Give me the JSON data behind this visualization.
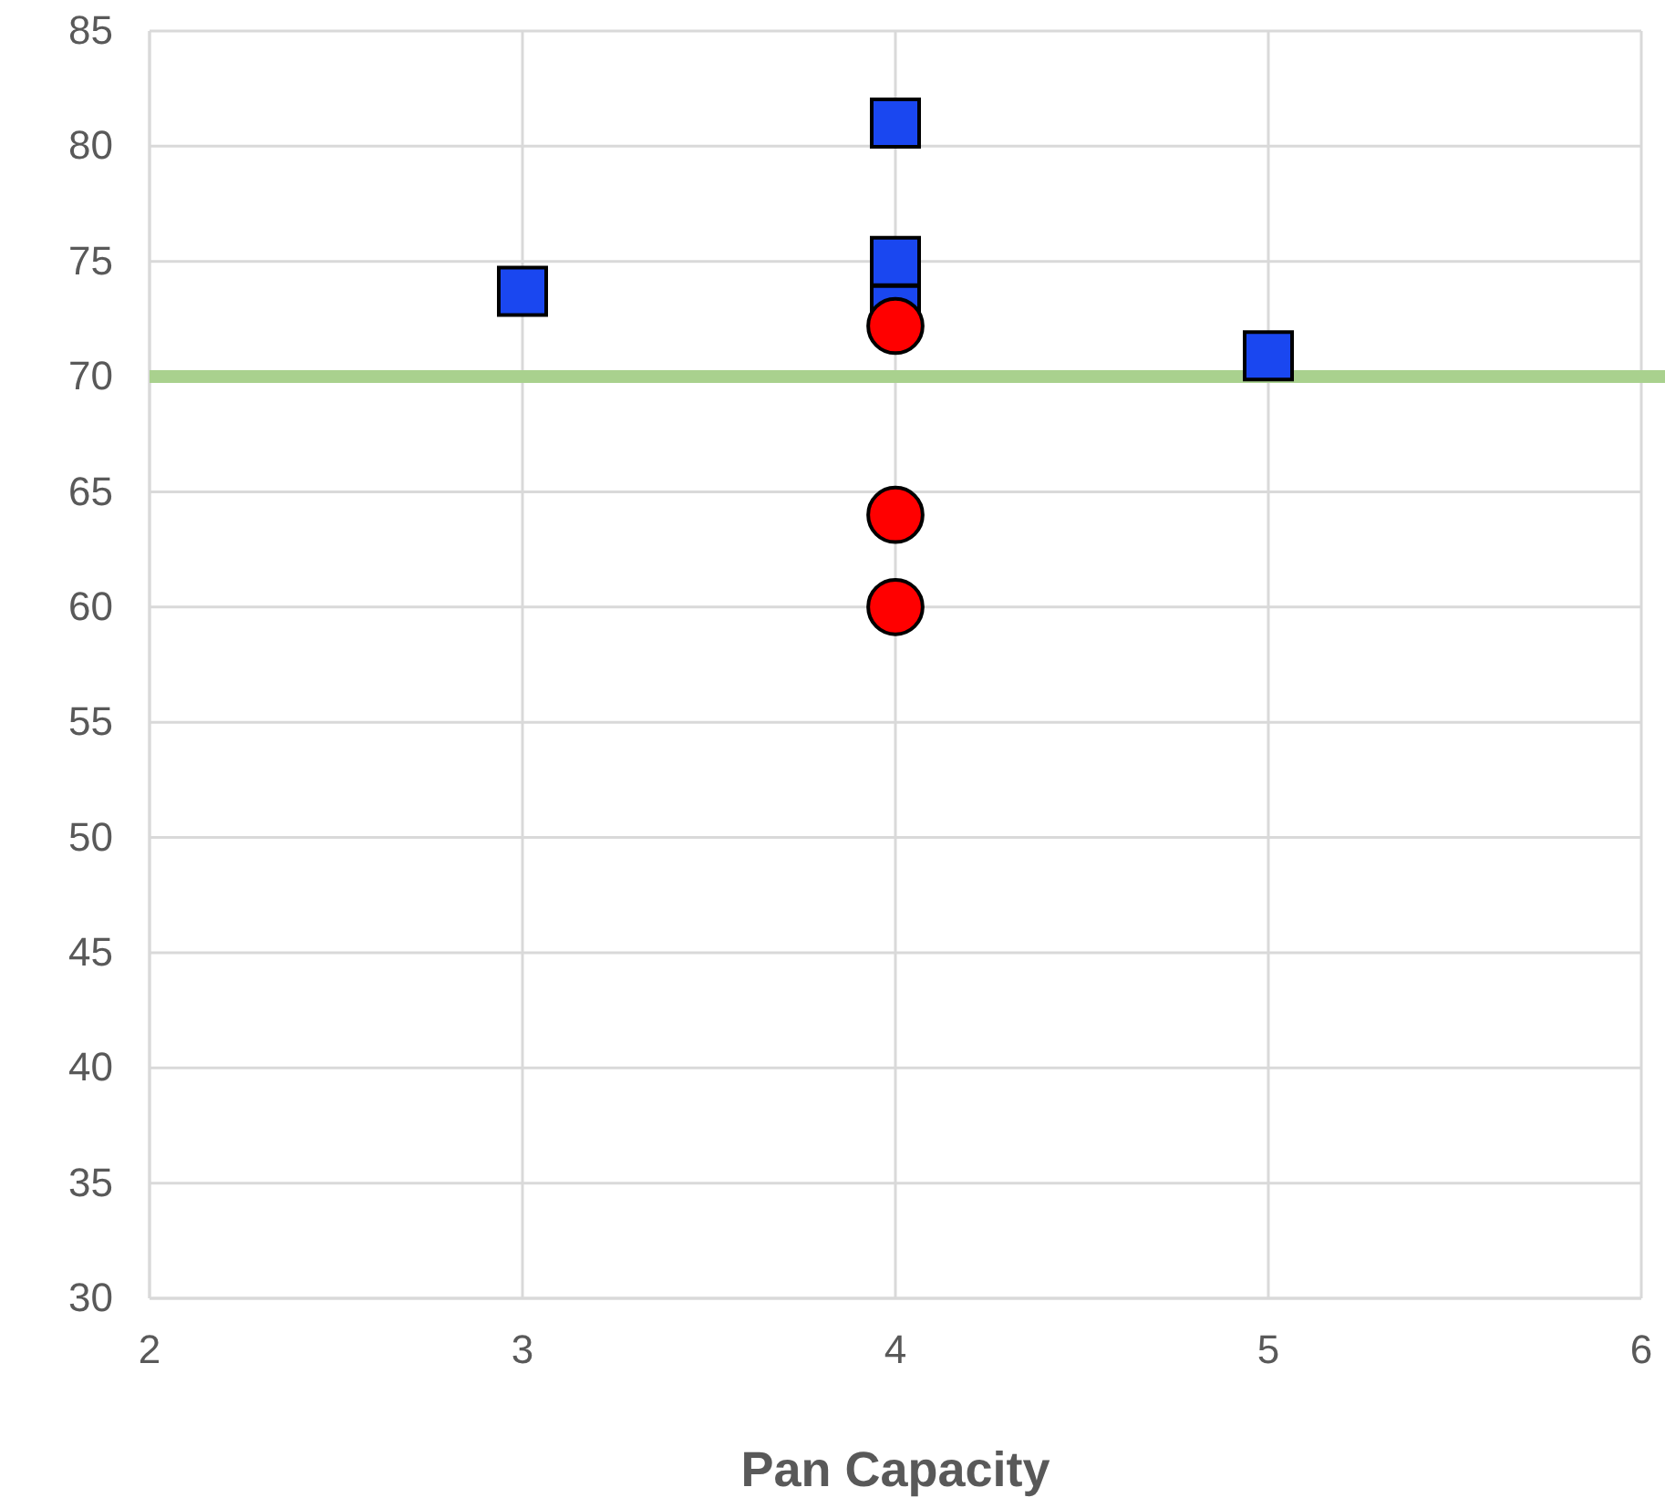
{
  "chart_data": {
    "type": "scatter",
    "xlabel": "Pan Capacity",
    "xlim": [
      2,
      6
    ],
    "xticks": [
      2,
      3,
      4,
      5,
      6
    ],
    "ylim": [
      30,
      85
    ],
    "yticks": [
      30,
      35,
      40,
      45,
      50,
      55,
      60,
      65,
      70,
      75,
      80,
      85
    ],
    "grid": true,
    "series": [
      {
        "marker": "square",
        "color": "#1a47f0",
        "x": [
          3,
          4,
          4,
          4,
          5
        ],
        "values": [
          73.7,
          81,
          75,
          72.9,
          70.9
        ]
      },
      {
        "marker": "circle",
        "color": "#ff0000",
        "x": [
          4,
          4,
          4
        ],
        "values": [
          72.2,
          64,
          60
        ]
      }
    ],
    "ref_lines": [
      {
        "axis": "y",
        "value": 70,
        "color": "#a9d18e"
      }
    ]
  }
}
